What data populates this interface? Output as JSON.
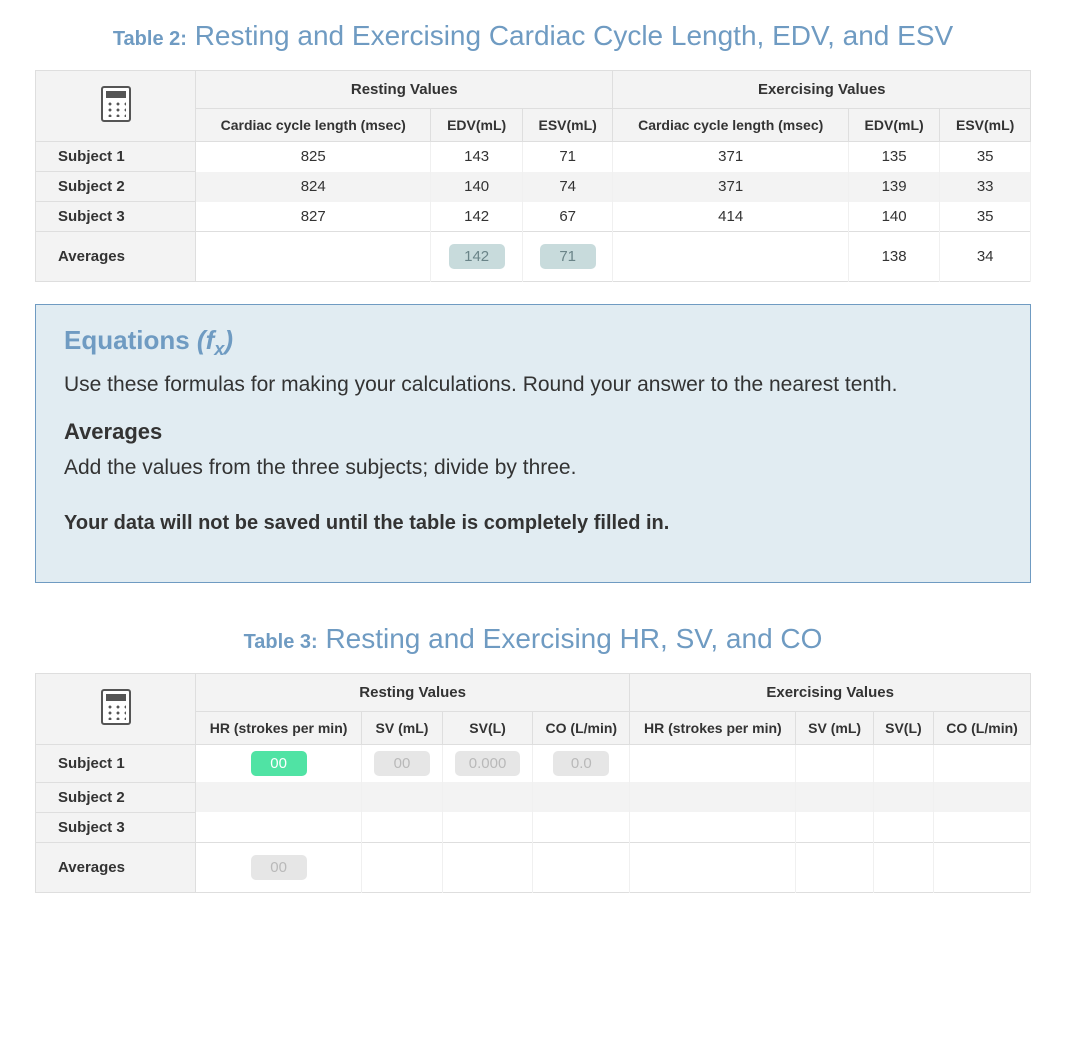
{
  "table2": {
    "prefix": "Table 2:",
    "title": "Resting and Exercising Cardiac Cycle Length, EDV, and ESV",
    "group_headers": [
      "Resting Values",
      "Exercising Values"
    ],
    "sub_headers": [
      "Cardiac cycle length (msec)",
      "EDV(mL)",
      "ESV(mL)",
      "Cardiac cycle length (msec)",
      "EDV(mL)",
      "ESV(mL)"
    ],
    "rows": [
      {
        "label": "Subject 1",
        "values": [
          "825",
          "143",
          "71",
          "371",
          "135",
          "35"
        ]
      },
      {
        "label": "Subject 2",
        "values": [
          "824",
          "140",
          "74",
          "371",
          "139",
          "33"
        ]
      },
      {
        "label": "Subject 3",
        "values": [
          "827",
          "142",
          "67",
          "414",
          "140",
          "35"
        ]
      }
    ],
    "averages": {
      "label": "Averages",
      "values": [
        "",
        "142",
        "71",
        "",
        "138",
        "34"
      ],
      "pill_indices": [
        1,
        2
      ]
    }
  },
  "equations": {
    "title_main": "Equations",
    "title_fx": "(f",
    "title_fx_sub": "x",
    "title_fx_close": ")",
    "desc": "Use these formulas for making your calculations. Round your answer to the nearest tenth.",
    "averages_heading": "Averages",
    "averages_desc": "Add the values from the three subjects; divide by three.",
    "warning": "Your data will not be saved until the table is completely filled in."
  },
  "table3": {
    "prefix": "Table 3:",
    "title": "Resting and Exercising HR, SV, and CO",
    "group_headers": [
      "Resting Values",
      "Exercising Values"
    ],
    "sub_headers": [
      "HR (strokes per min)",
      "SV (mL)",
      "SV(L)",
      "CO (L/min)",
      "HR (strokes per min)",
      "SV (mL)",
      "SV(L)",
      "CO (L/min)"
    ],
    "rows": [
      {
        "label": "Subject 1",
        "cells": [
          {
            "text": "00",
            "pill": "green"
          },
          {
            "text": "00",
            "pill": "grey"
          },
          {
            "text": "0.000",
            "pill": "grey"
          },
          {
            "text": "0.0",
            "pill": "grey"
          },
          {
            "text": ""
          },
          {
            "text": ""
          },
          {
            "text": ""
          },
          {
            "text": ""
          }
        ]
      },
      {
        "label": "Subject 2",
        "cells": [
          {
            "text": ""
          },
          {
            "text": ""
          },
          {
            "text": ""
          },
          {
            "text": ""
          },
          {
            "text": ""
          },
          {
            "text": ""
          },
          {
            "text": ""
          },
          {
            "text": ""
          }
        ]
      },
      {
        "label": "Subject 3",
        "cells": [
          {
            "text": ""
          },
          {
            "text": ""
          },
          {
            "text": ""
          },
          {
            "text": ""
          },
          {
            "text": ""
          },
          {
            "text": ""
          },
          {
            "text": ""
          },
          {
            "text": ""
          }
        ]
      }
    ],
    "averages": {
      "label": "Averages",
      "cells": [
        {
          "text": "00",
          "pill": "grey"
        },
        {
          "text": ""
        },
        {
          "text": ""
        },
        {
          "text": ""
        },
        {
          "text": ""
        },
        {
          "text": ""
        },
        {
          "text": ""
        },
        {
          "text": ""
        }
      ]
    }
  },
  "colors": {
    "accent": "#6f9bc2",
    "panel_bg": "#e1ecf2",
    "pill_default": "#c8dbdc",
    "pill_green": "#50e3a4",
    "pill_grey": "#e6e6e6",
    "table_header_bg": "#f3f3f3",
    "border": "#dedede"
  }
}
